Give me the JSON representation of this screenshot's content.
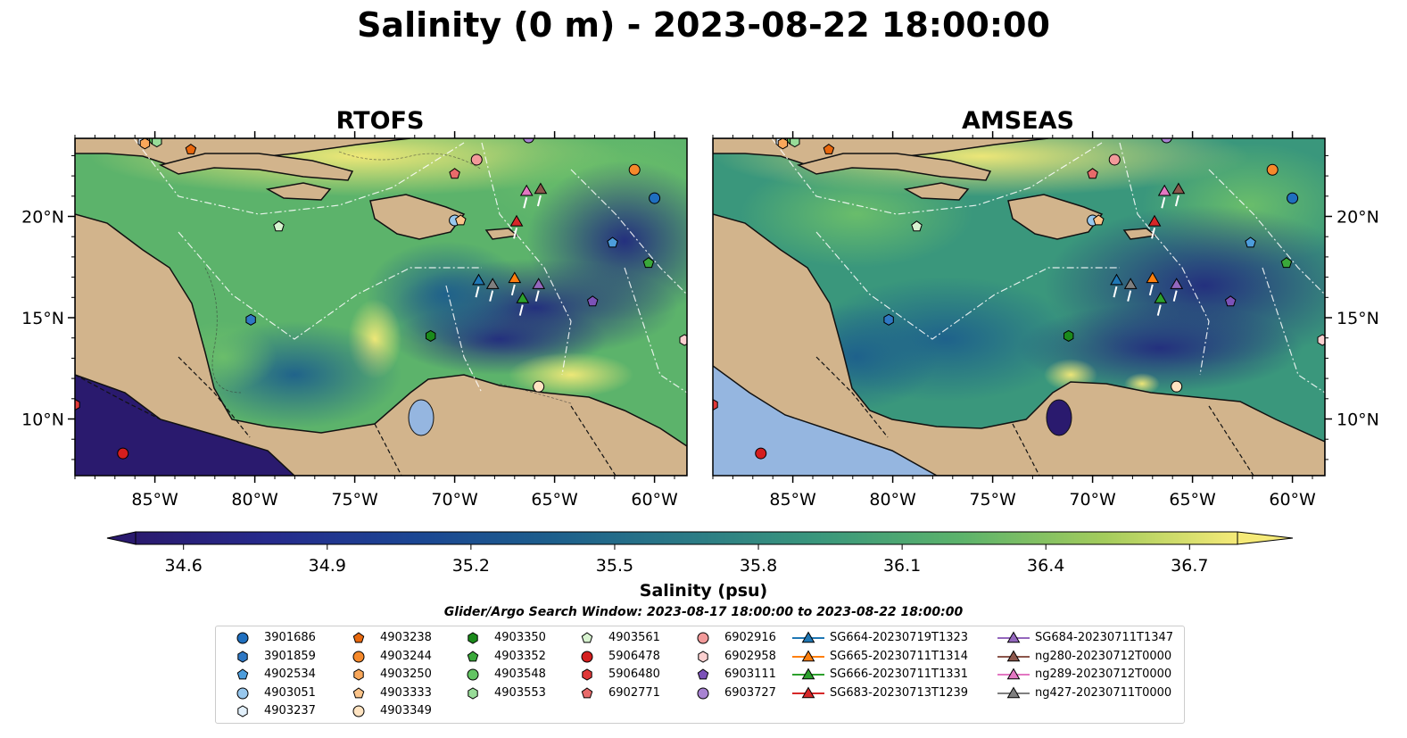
{
  "title": "Salinity (0 m) - 2023-08-22 18:00:00",
  "panels": [
    {
      "title": "RTOFS",
      "model": "rtofs"
    },
    {
      "title": "AMSEAS",
      "model": "amseas"
    }
  ],
  "lon_ticks": [
    "85°W",
    "80°W",
    "75°W",
    "70°W",
    "65°W",
    "60°W"
  ],
  "lat_ticks": [
    "20°N",
    "15°N",
    "10°N"
  ],
  "colorbar": {
    "label": "Salinity (psu)",
    "min": 34.5,
    "max": 36.8,
    "ticks": [
      "34.6",
      "34.9",
      "35.2",
      "35.5",
      "35.8",
      "36.1",
      "36.4",
      "36.7"
    ],
    "colormap": "haline",
    "extend": "both"
  },
  "search_window": "Glider/Argo Search Window: 2023-08-17 18:00:00 to 2023-08-22 18:00:00",
  "colors": {
    "land": "#d2b48c",
    "low_salinity": "#2a1a6e",
    "high_salinity": "#f5ea78",
    "lakes": "#95b6e0"
  },
  "legend": [
    {
      "label": "3901686",
      "marker": "circle",
      "color": "#1f6fbf"
    },
    {
      "label": "3901859",
      "marker": "hexagon",
      "color": "#2f78c4"
    },
    {
      "label": "4902534",
      "marker": "pentagon",
      "color": "#4d9ddc"
    },
    {
      "label": "4903051",
      "marker": "circle",
      "color": "#98c8ee"
    },
    {
      "label": "4903237",
      "marker": "hexagon",
      "color": "#e2f0fb"
    },
    {
      "label": "4903238",
      "marker": "pentagon",
      "color": "#e8680e"
    },
    {
      "label": "4903244",
      "marker": "circle",
      "color": "#f5892b"
    },
    {
      "label": "4903250",
      "marker": "hexagon",
      "color": "#f9a75a"
    },
    {
      "label": "4903333",
      "marker": "pentagon",
      "color": "#fbc48a"
    },
    {
      "label": "4903349",
      "marker": "circle",
      "color": "#fee3c1"
    },
    {
      "label": "4903350",
      "marker": "hexagon",
      "color": "#1b8a1b"
    },
    {
      "label": "4903352",
      "marker": "pentagon",
      "color": "#3aa83a"
    },
    {
      "label": "4903548",
      "marker": "circle",
      "color": "#63c463"
    },
    {
      "label": "4903553",
      "marker": "hexagon",
      "color": "#98dc98"
    },
    {
      "label": "4903561",
      "marker": "pentagon",
      "color": "#d8f3d0"
    },
    {
      "label": "5906478",
      "marker": "circle",
      "color": "#d41e1e"
    },
    {
      "label": "5906480",
      "marker": "hexagon",
      "color": "#e03838"
    },
    {
      "label": "6902771",
      "marker": "pentagon",
      "color": "#e86a6a"
    },
    {
      "label": "6902916",
      "marker": "circle",
      "color": "#f29a9a"
    },
    {
      "label": "6902958",
      "marker": "hexagon",
      "color": "#fbd0d0"
    },
    {
      "label": "6903111",
      "marker": "pentagon",
      "color": "#7c52b8"
    },
    {
      "label": "6903727",
      "marker": "circle",
      "color": "#a883d2"
    },
    {
      "label": "SG664-20230719T1323",
      "marker": "triangle",
      "color": "#1f77b4"
    },
    {
      "label": "SG665-20230711T1314",
      "marker": "triangle",
      "color": "#ff7f0e"
    },
    {
      "label": "SG666-20230711T1331",
      "marker": "triangle",
      "color": "#2ca02c"
    },
    {
      "label": "SG683-20230713T1239",
      "marker": "triangle",
      "color": "#d62728"
    },
    {
      "label": "SG684-20230711T1347",
      "marker": "triangle",
      "color": "#9467bd"
    },
    {
      "label": "ng280-20230712T0000",
      "marker": "triangle",
      "color": "#8c564b"
    },
    {
      "label": "ng289-20230712T0000",
      "marker": "triangle",
      "color": "#e377c2"
    },
    {
      "label": "ng427-20230711T0000",
      "marker": "triangle",
      "color": "#7f7f7f"
    }
  ],
  "markers": [
    {
      "id": "3901686",
      "lon": -60.0,
      "lat": 20.9
    },
    {
      "id": "3901859",
      "lon": -80.2,
      "lat": 14.9
    },
    {
      "id": "4902534",
      "lon": -62.1,
      "lat": 18.7
    },
    {
      "id": "4903051",
      "lon": -70.0,
      "lat": 19.8
    },
    {
      "id": "4903237",
      "lon": -85.6,
      "lat": 23.7
    },
    {
      "id": "4903238",
      "lon": -83.2,
      "lat": 23.3
    },
    {
      "id": "4903244",
      "lon": -61.0,
      "lat": 22.3
    },
    {
      "id": "4903250",
      "lon": -85.5,
      "lat": 23.6
    },
    {
      "id": "4903333",
      "lon": -69.7,
      "lat": 19.8
    },
    {
      "id": "4903349",
      "lon": -65.8,
      "lat": 11.6
    },
    {
      "id": "4903350",
      "lon": -71.2,
      "lat": 14.1
    },
    {
      "id": "4903352",
      "lon": -60.3,
      "lat": 17.7
    },
    {
      "id": "4903548",
      "lon": -85.0,
      "lat": 23.8
    },
    {
      "id": "4903553",
      "lon": -84.9,
      "lat": 23.7
    },
    {
      "id": "4903561",
      "lon": -78.8,
      "lat": 19.5
    },
    {
      "id": "5906478",
      "lon": -86.6,
      "lat": 8.3
    },
    {
      "id": "5906480",
      "lon": -89.0,
      "lat": 10.7
    },
    {
      "id": "6902771",
      "lon": -70.0,
      "lat": 22.1
    },
    {
      "id": "6902916",
      "lon": -68.9,
      "lat": 22.8
    },
    {
      "id": "6902958",
      "lon": -58.5,
      "lat": 13.9
    },
    {
      "id": "6903111",
      "lon": -63.1,
      "lat": 15.8
    },
    {
      "id": "6903727",
      "lon": -66.3,
      "lat": 23.9
    }
  ],
  "gliders": [
    {
      "id": "SG664-20230719T1323",
      "lon": -68.8,
      "lat": 16.8
    },
    {
      "id": "SG665-20230711T1314",
      "lon": -67.0,
      "lat": 16.9
    },
    {
      "id": "SG666-20230711T1331",
      "lon": -66.6,
      "lat": 15.9
    },
    {
      "id": "SG683-20230713T1239",
      "lon": -66.9,
      "lat": 19.7
    },
    {
      "id": "SG684-20230711T1347",
      "lon": -65.8,
      "lat": 16.6
    },
    {
      "id": "ng280-20230712T0000",
      "lon": -65.7,
      "lat": 21.3
    },
    {
      "id": "ng289-20230712T0000",
      "lon": -66.4,
      "lat": 21.2
    },
    {
      "id": "ng427-20230711T0000",
      "lon": -68.1,
      "lat": 16.6
    }
  ]
}
